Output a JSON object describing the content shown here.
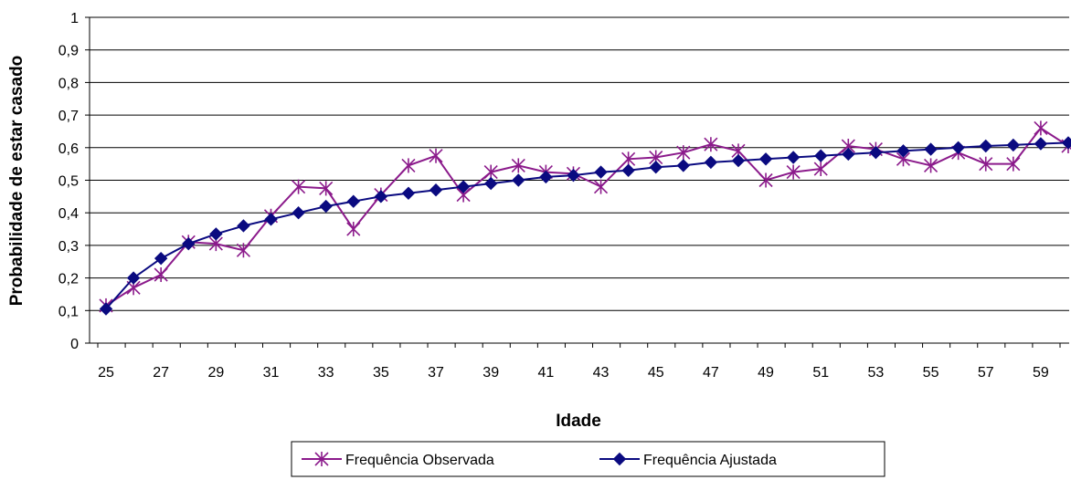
{
  "chart_data": {
    "type": "line",
    "title": "",
    "xlabel": "Idade",
    "ylabel": "Probabilidade de estar casado",
    "ylim": [
      0,
      1
    ],
    "y_ticks": [
      "0",
      "0,1",
      "0,2",
      "0,3",
      "0,4",
      "0,5",
      "0,6",
      "0,7",
      "0,8",
      "0,9",
      "1"
    ],
    "x": [
      25,
      26,
      27,
      28,
      29,
      30,
      31,
      32,
      33,
      34,
      35,
      36,
      37,
      38,
      39,
      40,
      41,
      42,
      43,
      44,
      45,
      46,
      47,
      48,
      49,
      50,
      51,
      52,
      53,
      54,
      55,
      56,
      57,
      58,
      59,
      60
    ],
    "x_tick_labels": [
      "25",
      "27",
      "29",
      "31",
      "33",
      "35",
      "37",
      "39",
      "41",
      "43",
      "45",
      "47",
      "49",
      "51",
      "53",
      "55",
      "57",
      "59"
    ],
    "grid": "horizontal",
    "legend_position": "bottom",
    "series": [
      {
        "name": "Frequência Observada",
        "color": "#8B1A8B",
        "marker": "star",
        "values": [
          0.115,
          0.17,
          0.21,
          0.31,
          0.305,
          0.285,
          0.39,
          0.48,
          0.475,
          0.35,
          0.455,
          0.545,
          0.575,
          0.455,
          0.525,
          0.545,
          0.525,
          0.52,
          0.48,
          0.565,
          0.57,
          0.585,
          0.61,
          0.59,
          0.5,
          0.525,
          0.535,
          0.605,
          0.595,
          0.565,
          0.545,
          0.585,
          0.55,
          0.55,
          0.66,
          0.605
        ]
      },
      {
        "name": "Frequência Ajustada",
        "color": "#0A0A80",
        "marker": "diamond",
        "values": [
          0.105,
          0.2,
          0.26,
          0.305,
          0.335,
          0.36,
          0.38,
          0.4,
          0.42,
          0.435,
          0.45,
          0.46,
          0.47,
          0.48,
          0.49,
          0.5,
          0.51,
          0.515,
          0.525,
          0.53,
          0.54,
          0.545,
          0.555,
          0.56,
          0.565,
          0.57,
          0.575,
          0.58,
          0.585,
          0.59,
          0.595,
          0.6,
          0.605,
          0.608,
          0.612,
          0.615
        ]
      }
    ]
  }
}
